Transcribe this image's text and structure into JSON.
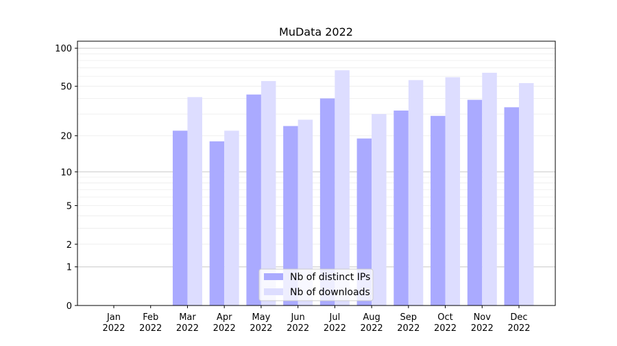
{
  "chart_data": {
    "type": "bar",
    "title": "MuData 2022",
    "xlabel": "",
    "ylabel": "",
    "yscale": "log(1+y)",
    "ylim": [
      0,
      120
    ],
    "yticks": [
      0,
      1,
      2,
      5,
      10,
      20,
      50,
      100
    ],
    "ytick_labels": [
      "0",
      "1",
      "2",
      "5",
      "10",
      "20",
      "50",
      "100"
    ],
    "categories": [
      "Jan 2022",
      "Feb 2022",
      "Mar 2022",
      "Apr 2022",
      "May 2022",
      "Jun 2022",
      "Jul 2022",
      "Aug 2022",
      "Sep 2022",
      "Oct 2022",
      "Nov 2022",
      "Dec 2022"
    ],
    "category_lines": [
      [
        "Jan",
        "2022"
      ],
      [
        "Feb",
        "2022"
      ],
      [
        "Mar",
        "2022"
      ],
      [
        "Apr",
        "2022"
      ],
      [
        "May",
        "2022"
      ],
      [
        "Jun",
        "2022"
      ],
      [
        "Jul",
        "2022"
      ],
      [
        "Aug",
        "2022"
      ],
      [
        "Sep",
        "2022"
      ],
      [
        "Oct",
        "2022"
      ],
      [
        "Nov",
        "2022"
      ],
      [
        "Dec",
        "2022"
      ]
    ],
    "series": [
      {
        "name": "Nb of distinct IPs",
        "color": "#aaaaff",
        "values": [
          0,
          0,
          22,
          18,
          43,
          24,
          40,
          19,
          32,
          29,
          39,
          34
        ]
      },
      {
        "name": "Nb of downloads",
        "color": "#ddddff",
        "values": [
          0,
          0,
          41,
          22,
          55,
          27,
          67,
          30,
          56,
          59,
          64,
          53
        ]
      }
    ],
    "grid": "horizontal, major and minor",
    "legend": "bottom-center"
  }
}
